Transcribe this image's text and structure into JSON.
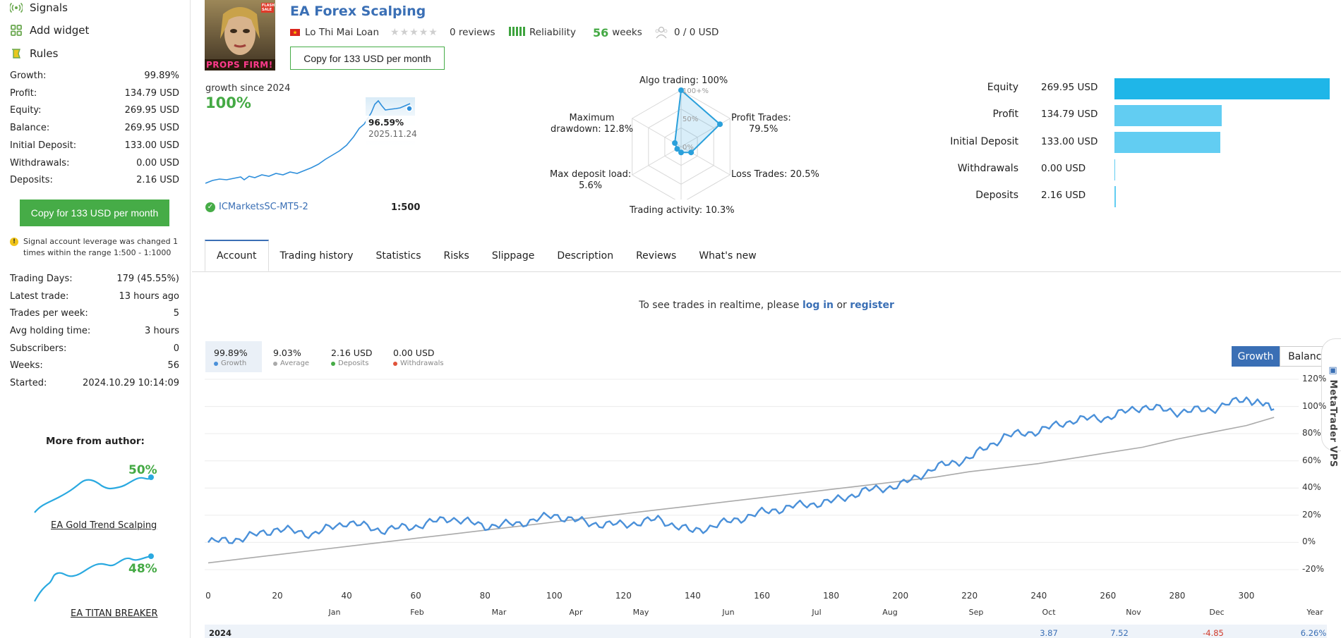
{
  "sidebar": {
    "menu": [
      {
        "label": "Signals",
        "icon": "signal-icon"
      },
      {
        "label": "Add widget",
        "icon": "widget-icon"
      },
      {
        "label": "Rules",
        "icon": "rules-icon"
      }
    ],
    "stats": [
      {
        "label": "Growth:",
        "value": "99.89%"
      },
      {
        "label": "Profit:",
        "value": "134.79 USD"
      },
      {
        "label": "Equity:",
        "value": "269.95 USD"
      },
      {
        "label": "Balance:",
        "value": "269.95 USD"
      },
      {
        "label": "Initial Deposit:",
        "value": "133.00 USD"
      },
      {
        "label": "Withdrawals:",
        "value": "0.00 USD"
      },
      {
        "label": "Deposits:",
        "value": "2.16 USD"
      }
    ],
    "copy_button": "Copy for 133 USD per month",
    "warning": "Signal account leverage was changed 1 times within the range 1:500 - 1:1000",
    "stats2": [
      {
        "label": "Trading Days:",
        "value": "179 (45.55%)"
      },
      {
        "label": "Latest trade:",
        "value": "13 hours ago"
      },
      {
        "label": "Trades per week:",
        "value": "5"
      },
      {
        "label": "Avg holding time:",
        "value": "3 hours"
      },
      {
        "label": "Subscribers:",
        "value": "0"
      },
      {
        "label": "Weeks:",
        "value": "56"
      },
      {
        "label": "Started:",
        "value": "2024.10.29 10:14:09"
      }
    ],
    "more_from_author": "More from author:",
    "author_signals": [
      {
        "name": "EA Gold Trend Scalping",
        "growth": "50%"
      },
      {
        "name": "EA TITAN BREAKER",
        "growth": "48%"
      }
    ]
  },
  "header": {
    "title": "EA Forex Scalping",
    "author": "Lo Thi Mai Loan",
    "reviews": "0 reviews",
    "reliability": "Reliability",
    "weeks_num": "56",
    "weeks_label": "weeks",
    "subscribers": "0 / 0 USD",
    "copy_button": "Copy for 133 USD per month",
    "avatar_text": "PROPS FIRM!",
    "avatar_badge": "FLASH SALE"
  },
  "mini_growth": {
    "label": "growth since 2024",
    "value": "100%",
    "tooltip_value": "96.59%",
    "tooltip_date": "2025.11.24",
    "broker": "ICMarketsSC-MT5-2",
    "leverage": "1:500"
  },
  "radar": {
    "algo": "Algo trading: 100%",
    "profit_trades_1": "Profit Trades:",
    "profit_trades_2": "79.5%",
    "loss_trades": "Loss Trades: 20.5%",
    "activity": "Trading activity: 10.3%",
    "deposit_load_1": "Max deposit load:",
    "deposit_load_2": "5.6%",
    "drawdown_1": "Maximum",
    "drawdown_2": "drawdown: 12.8%",
    "ring_100": "100+%",
    "ring_50": "50%",
    "ring_0": "0%",
    "values": {
      "algo": 100,
      "profit": 79.5,
      "loss": 20.5,
      "activity": 10.3,
      "deposit_load": 5.6,
      "drawdown": 12.8
    }
  },
  "balance_bars": [
    {
      "label": "Equity",
      "value": "269.95 USD",
      "amount": 269.95,
      "color": "#1fb6e8"
    },
    {
      "label": "Profit",
      "value": "134.79 USD",
      "amount": 134.79,
      "color": "#62cdf2"
    },
    {
      "label": "Initial Deposit",
      "value": "133.00 USD",
      "amount": 133.0,
      "color": "#62cdf2"
    },
    {
      "label": "Withdrawals",
      "value": "0.00 USD",
      "amount": 0,
      "color": "#62cdf2"
    },
    {
      "label": "Deposits",
      "value": "2.16 USD",
      "amount": 2.16,
      "color": "#62cdf2"
    }
  ],
  "tabs": [
    "Account",
    "Trading history",
    "Statistics",
    "Risks",
    "Slippage",
    "Description",
    "Reviews",
    "What's new"
  ],
  "realtime": {
    "prefix": "To see trades in realtime, please",
    "login": "log in",
    "or": "or",
    "register": "register"
  },
  "summary": [
    {
      "value": "99.89%",
      "label": "Growth",
      "color": "#4a90d9"
    },
    {
      "value": "9.03%",
      "label": "Average",
      "color": "#aaaaaa"
    },
    {
      "value": "2.16 USD",
      "label": "Deposits",
      "color": "#46ac47"
    },
    {
      "value": "0.00 USD",
      "label": "Withdrawals",
      "color": "#e0533a"
    }
  ],
  "toggles": {
    "growth": "Growth",
    "balance": "Balance"
  },
  "vps": "MetaTrader VPS",
  "chart_data": {
    "type": "line",
    "x": [
      0,
      10,
      20,
      30,
      40,
      50,
      60,
      70,
      80,
      90,
      100,
      110,
      120,
      130,
      140,
      150,
      160,
      170,
      180,
      190,
      200,
      210,
      220,
      230,
      240,
      250,
      260,
      270,
      280,
      290,
      300,
      308
    ],
    "series": [
      {
        "color": "#4a90d9",
        "values": [
          0,
          3,
          10,
          6,
          15,
          9,
          12,
          18,
          12,
          14,
          20,
          14,
          13,
          17,
          8,
          15,
          22,
          27,
          30,
          38,
          42,
          55,
          62,
          78,
          82,
          90,
          92,
          100,
          96,
          98,
          106,
          98
        ]
      },
      {
        "color": "#aaaaaa",
        "values": [
          -15,
          -12,
          -9,
          -6,
          -3,
          0,
          3,
          6,
          9,
          12,
          15,
          18,
          21,
          24,
          27,
          30,
          33,
          36,
          39,
          42,
          45,
          48,
          52,
          55,
          58,
          62,
          66,
          70,
          76,
          81,
          86,
          92
        ]
      }
    ],
    "ylim": [
      -20,
      120
    ],
    "yticks": [
      "120%",
      "100%",
      "80%",
      "60%",
      "40%",
      "20%",
      "0%",
      "-20%"
    ],
    "xticks": [
      "0",
      "20",
      "40",
      "60",
      "80",
      "100",
      "120",
      "140",
      "160",
      "180",
      "200",
      "220",
      "240",
      "260",
      "280",
      "300"
    ],
    "months": [
      "Jan",
      "Feb",
      "Mar",
      "Apr",
      "May",
      "Jun",
      "Jul",
      "Aug",
      "Sep",
      "Oct",
      "Nov",
      "Dec",
      "Year"
    ],
    "year_row": {
      "year": "2024",
      "oct": "3.87",
      "nov": "7.52",
      "dec": "-4.85",
      "total": "6.26%"
    }
  }
}
